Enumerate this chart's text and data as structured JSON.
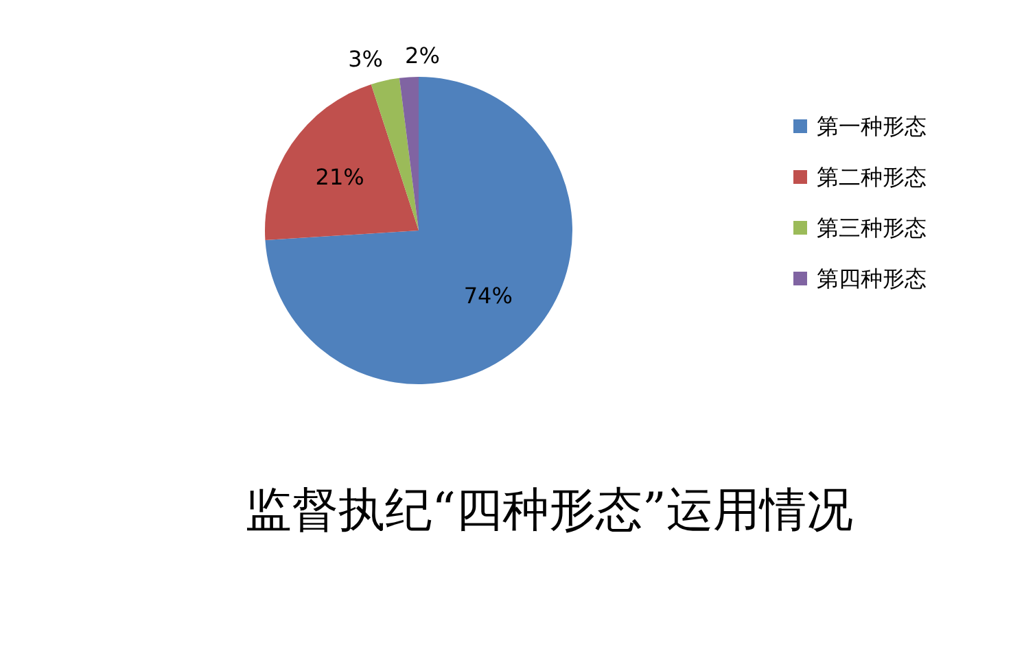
{
  "chart_data": {
    "type": "pie",
    "title": "监督执纪“四种形态”运用情况",
    "categories": [
      "第一种形态",
      "第二种形态",
      "第三种形态",
      "第四种形态"
    ],
    "values": [
      74,
      21,
      3,
      2
    ],
    "colors": [
      "#4f81bd",
      "#c0504d",
      "#9bbb59",
      "#8064a2"
    ],
    "value_labels": [
      "74%",
      "21%",
      "3%",
      "2%"
    ],
    "legend": "right"
  }
}
